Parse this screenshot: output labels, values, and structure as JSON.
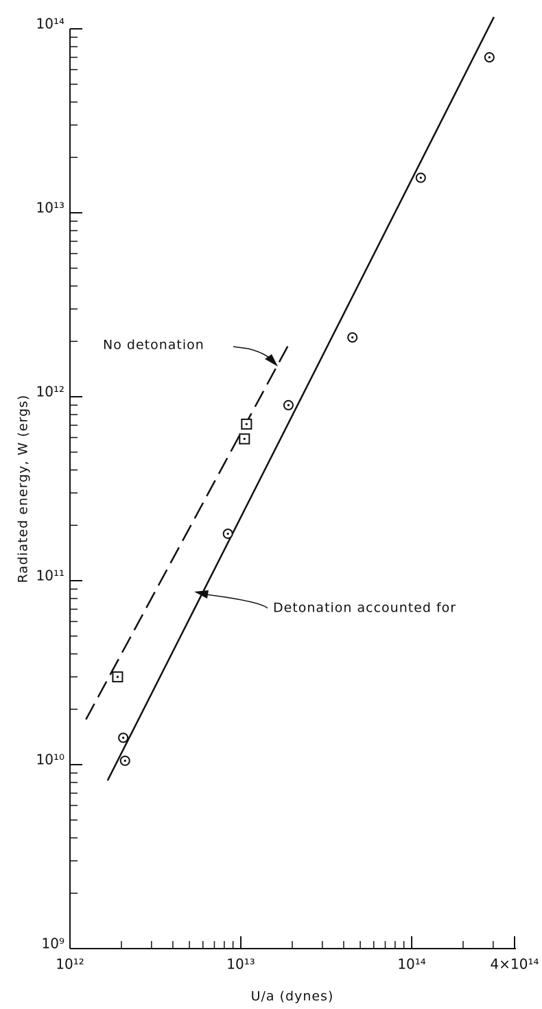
{
  "chart_data": {
    "type": "scatter",
    "x_label": "U/a (dynes)",
    "y_label": "Radiated energy, W (ergs)",
    "log_x": true,
    "log_y": true,
    "xlim": [
      1000000000000.0,
      400000000000000.0
    ],
    "ylim": [
      1000000000.0,
      100000000000000.0
    ],
    "xticks": [
      {
        "value": 1000000000000.0,
        "label": "10¹²"
      },
      {
        "value": 10000000000000.0,
        "label": "10¹³"
      },
      {
        "value": 100000000000000.0,
        "label": "10¹⁴"
      },
      {
        "value": 400000000000000.0,
        "label": "4×10¹⁴"
      }
    ],
    "yticks": [
      {
        "value": 1000000000.0,
        "label": "10⁹"
      },
      {
        "value": 10000000000.0,
        "label": "10¹⁰"
      },
      {
        "value": 100000000000.0,
        "label": "10¹¹"
      },
      {
        "value": 1000000000000.0,
        "label": "10¹²"
      },
      {
        "value": 10000000000000.0,
        "label": "10¹³"
      },
      {
        "value": 100000000000000.0,
        "label": "10¹⁴"
      }
    ],
    "xminorticks": [
      2000000000000.0,
      3000000000000.0,
      4000000000000.0,
      5000000000000.0,
      6000000000000.0,
      7000000000000.0,
      8000000000000.0,
      9000000000000.0,
      20000000000000.0,
      30000000000000.0,
      40000000000000.0,
      50000000000000.0,
      60000000000000.0,
      70000000000000.0,
      80000000000000.0,
      90000000000000.0,
      200000000000000.0,
      300000000000000.0
    ],
    "yminorticks": [
      2000000000.0,
      3000000000.0,
      4000000000.0,
      5000000000.0,
      6000000000.0,
      7000000000.0,
      8000000000.0,
      9000000000.0,
      20000000000.0,
      30000000000.0,
      40000000000.0,
      50000000000.0,
      60000000000.0,
      70000000000.0,
      80000000000.0,
      90000000000.0,
      200000000000.0,
      300000000000.0,
      400000000000.0,
      500000000000.0,
      600000000000.0,
      700000000000.0,
      800000000000.0,
      900000000000.0,
      2000000000000.0,
      3000000000000.0,
      4000000000000.0,
      5000000000000.0,
      6000000000000.0,
      7000000000000.0,
      8000000000000.0,
      9000000000000.0,
      20000000000000.0,
      30000000000000.0,
      40000000000000.0,
      50000000000000.0,
      60000000000000.0,
      70000000000000.0,
      80000000000000.0,
      90000000000000.0
    ],
    "series": [
      {
        "name": "Detonation accounted for",
        "marker": "circle",
        "color": "#111111",
        "dash": false,
        "x": [
          2100000000000.0,
          2050000000000.0,
          8400000000000.0,
          19000000000000.0,
          45000000000000.0,
          113000000000000.0,
          285000000000000.0
        ],
        "values": [
          10500000000.0,
          14000000000.0,
          180000000000.0,
          900000000000.0,
          2100000000000.0,
          15500000000000.0,
          70000000000000.0
        ],
        "fit_x": [
          1660000000000.0,
          303000000000000.0
        ],
        "fit_y": [
          8200000000.0,
          116000000000000.0
        ]
      },
      {
        "name": "No detonation",
        "marker": "square",
        "color": "#111111",
        "dash": true,
        "x": [
          1900000000000.0,
          10500000000000.0,
          10800000000000.0
        ],
        "values": [
          30000000000.0,
          590000000000.0,
          710000000000.0
        ],
        "fit_x": [
          1240000000000.0,
          19500000000000.0
        ],
        "fit_y": [
          17600000000.0,
          2000000000000.0
        ]
      }
    ]
  }
}
